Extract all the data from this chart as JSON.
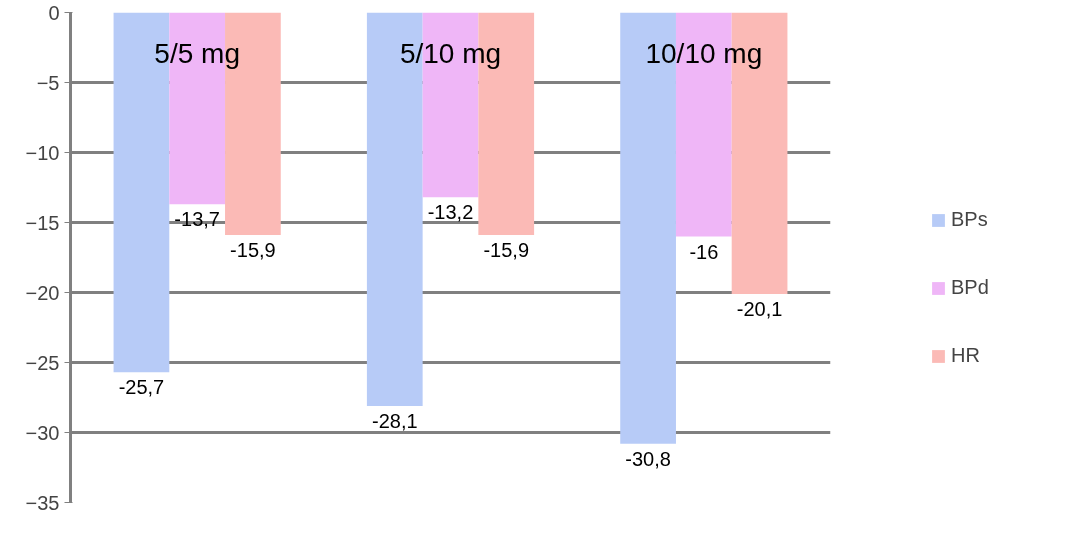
{
  "chart_data": {
    "type": "bar",
    "categories": [
      "5/5 mg",
      "5/10 mg",
      "10/10 mg"
    ],
    "series": [
      {
        "name": "BPs",
        "color": "#b7cbf7",
        "values": [
          -25.7,
          -28.1,
          -30.8
        ],
        "value_labels": [
          "-25,7",
          "-28,1",
          "-30,8"
        ]
      },
      {
        "name": "BPd",
        "color": "#efb6f7",
        "values": [
          -13.7,
          -13.2,
          -16
        ],
        "value_labels": [
          "-13,7",
          "-13,2",
          "-16"
        ]
      },
      {
        "name": "HR",
        "color": "#fbbab6",
        "values": [
          -15.9,
          -15.9,
          -20.1
        ],
        "value_labels": [
          "-15,9",
          "-15,9",
          "-20,1"
        ]
      }
    ],
    "ylim": [
      -35,
      0
    ],
    "yticks": [
      -35,
      -30,
      -25,
      -20,
      -15,
      -10,
      -5,
      0
    ],
    "grid": "y",
    "legend": "right"
  }
}
